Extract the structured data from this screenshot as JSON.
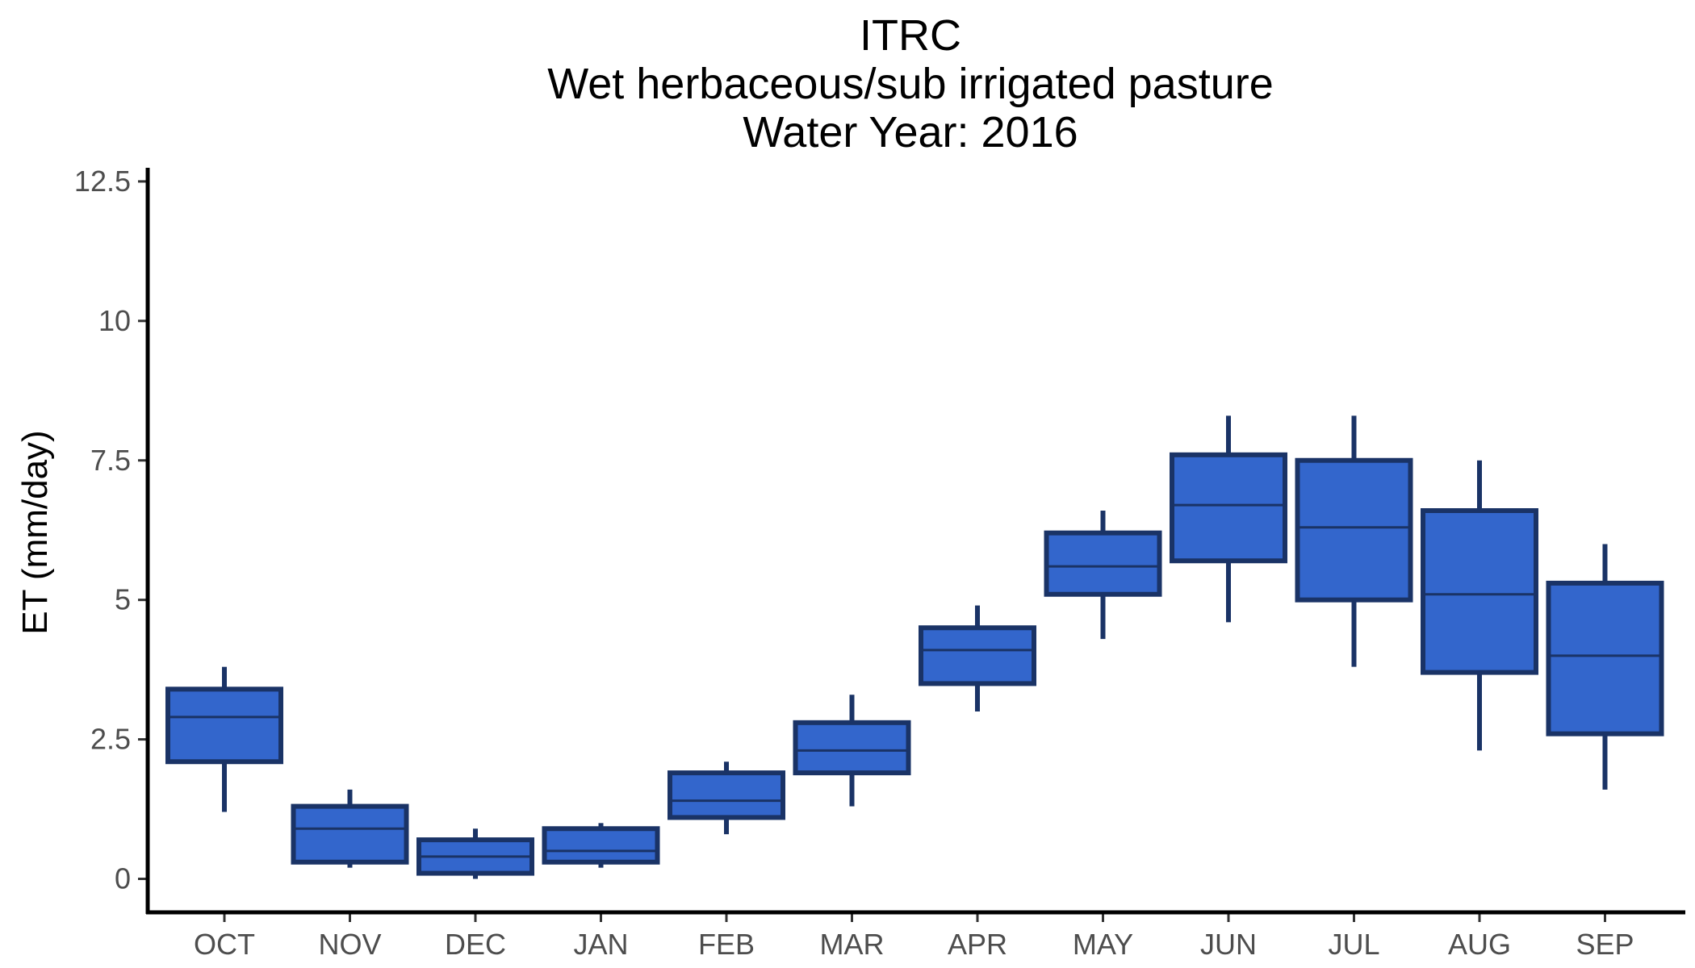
{
  "chart_data": {
    "type": "boxplot",
    "title": [
      "ITRC",
      "Wet herbaceous/sub irrigated pasture",
      "Water Year: 2016"
    ],
    "xlabel": "",
    "ylabel": "ET (mm/day)",
    "ylim": [
      -0.6,
      12.6
    ],
    "yticks": [
      0,
      2.5,
      5,
      7.5,
      10,
      12.5
    ],
    "ytick_labels": [
      "0",
      "2.5",
      "5",
      "7.5",
      "10",
      "12.5"
    ],
    "grid": false,
    "legend": "none",
    "colors": {
      "box_fill": "#3366cc",
      "box_stroke": "#1a3366",
      "axis": "#000000"
    },
    "categories": [
      "OCT",
      "NOV",
      "DEC",
      "JAN",
      "FEB",
      "MAR",
      "APR",
      "MAY",
      "JUN",
      "JUL",
      "AUG",
      "SEP"
    ],
    "boxes": [
      {
        "min": 1.2,
        "q1": 2.1,
        "median": 2.9,
        "q3": 3.4,
        "max": 3.8
      },
      {
        "min": 0.2,
        "q1": 0.3,
        "median": 0.9,
        "q3": 1.3,
        "max": 1.6
      },
      {
        "min": 0.0,
        "q1": 0.1,
        "median": 0.4,
        "q3": 0.7,
        "max": 0.9
      },
      {
        "min": 0.2,
        "q1": 0.3,
        "median": 0.5,
        "q3": 0.9,
        "max": 1.0
      },
      {
        "min": 0.8,
        "q1": 1.1,
        "median": 1.4,
        "q3": 1.9,
        "max": 2.1
      },
      {
        "min": 1.3,
        "q1": 1.9,
        "median": 2.3,
        "q3": 2.8,
        "max": 3.3
      },
      {
        "min": 3.0,
        "q1": 3.5,
        "median": 4.1,
        "q3": 4.5,
        "max": 4.9
      },
      {
        "min": 4.3,
        "q1": 5.1,
        "median": 5.6,
        "q3": 6.2,
        "max": 6.6
      },
      {
        "min": 4.6,
        "q1": 5.7,
        "median": 6.7,
        "q3": 7.6,
        "max": 8.3
      },
      {
        "min": 3.8,
        "q1": 5.0,
        "median": 6.3,
        "q3": 7.5,
        "max": 8.3
      },
      {
        "min": 2.3,
        "q1": 3.7,
        "median": 5.1,
        "q3": 6.6,
        "max": 7.5
      },
      {
        "min": 1.6,
        "q1": 2.6,
        "median": 4.0,
        "q3": 5.3,
        "max": 6.0
      }
    ]
  }
}
